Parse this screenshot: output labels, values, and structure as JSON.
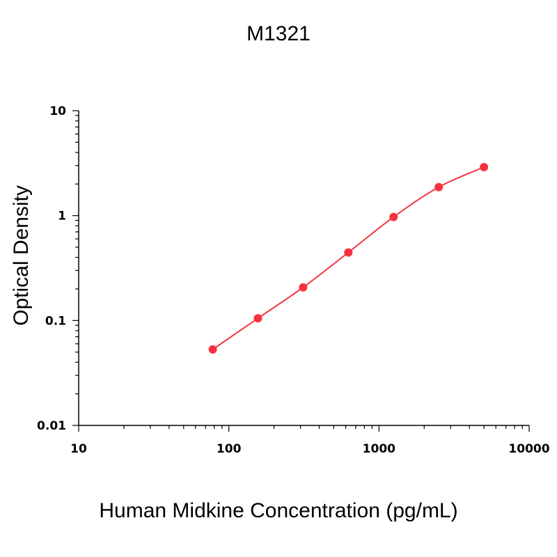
{
  "chart_data": {
    "type": "line",
    "title": "M1321",
    "xlabel": "Human Midkine Concentration (pg/mL)",
    "ylabel": "Optical Density",
    "x_scale": "log",
    "y_scale": "log",
    "xlim": [
      10,
      10000
    ],
    "ylim": [
      0.01,
      10
    ],
    "x_ticks": [
      "10",
      "100",
      "1000",
      "10000"
    ],
    "y_ticks": [
      "0.01",
      "0.1",
      "1",
      "10"
    ],
    "grid": false,
    "series": [
      {
        "color": "#f5333f",
        "x": [
          78.125,
          156.25,
          312.5,
          625,
          1250,
          2500,
          5000
        ],
        "y": [
          0.053,
          0.105,
          0.207,
          0.445,
          0.97,
          1.87,
          2.9
        ]
      }
    ]
  }
}
